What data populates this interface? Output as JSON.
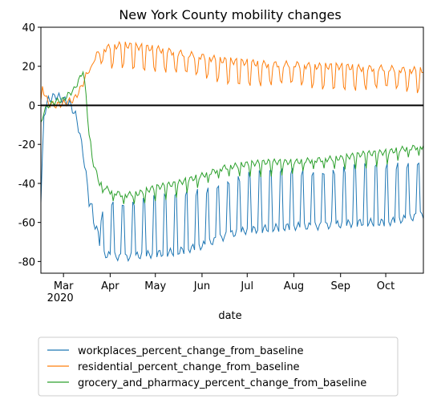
{
  "chart_data": {
    "type": "line",
    "title": "New York County mobility changes",
    "xlabel": "date",
    "ylabel": "",
    "ylim": [
      -86,
      40
    ],
    "x_start": "2020-02-15",
    "x_end": "2020-10-26",
    "x_ticks": [
      {
        "date": "2020-03-01",
        "label": "Mar",
        "sublabel": "2020"
      },
      {
        "date": "2020-04-01",
        "label": "Apr",
        "sublabel": ""
      },
      {
        "date": "2020-05-01",
        "label": "May",
        "sublabel": ""
      },
      {
        "date": "2020-06-01",
        "label": "Jun",
        "sublabel": ""
      },
      {
        "date": "2020-07-01",
        "label": "Jul",
        "sublabel": ""
      },
      {
        "date": "2020-08-01",
        "label": "Aug",
        "sublabel": ""
      },
      {
        "date": "2020-09-01",
        "label": "Sep",
        "sublabel": ""
      },
      {
        "date": "2020-10-01",
        "label": "Oct",
        "sublabel": ""
      }
    ],
    "y_ticks": [
      40,
      20,
      0,
      -20,
      -40,
      -60,
      -80
    ],
    "baseline": 0,
    "grid": false,
    "legend_position": "bottom",
    "series": [
      {
        "name": "workplaces_percent_change_from_baseline",
        "color": "#1f77b4",
        "points": [
          [
            "2020-02-15",
            -50
          ],
          [
            "2020-02-17",
            -5
          ],
          [
            "2020-02-20",
            3
          ],
          [
            "2020-02-25",
            5
          ],
          [
            "2020-03-01",
            3
          ],
          [
            "2020-03-05",
            1
          ],
          [
            "2020-03-09",
            -5
          ],
          [
            "2020-03-12",
            -15
          ],
          [
            "2020-03-14",
            -25
          ],
          [
            "2020-03-16",
            -35
          ],
          [
            "2020-03-18",
            -50
          ],
          [
            "2020-03-20",
            -60
          ],
          [
            "2020-03-23",
            -62
          ],
          [
            "2020-03-26",
            -76
          ],
          [
            "2020-04-01",
            -77
          ],
          [
            "2020-04-10",
            -78
          ],
          [
            "2020-04-20",
            -77
          ],
          [
            "2020-05-01",
            -76
          ],
          [
            "2020-05-15",
            -75
          ],
          [
            "2020-06-01",
            -72
          ],
          [
            "2020-06-10",
            -69
          ],
          [
            "2020-06-20",
            -66
          ],
          [
            "2020-07-01",
            -64
          ],
          [
            "2020-07-15",
            -63
          ],
          [
            "2020-08-01",
            -62
          ],
          [
            "2020-08-15",
            -62
          ],
          [
            "2020-09-01",
            -61
          ],
          [
            "2020-09-15",
            -60
          ],
          [
            "2020-10-01",
            -60
          ],
          [
            "2020-10-15",
            -58
          ],
          [
            "2020-10-26",
            -56
          ]
        ]
      },
      {
        "name": "residential_percent_change_from_baseline",
        "color": "#ff7f0e",
        "points": [
          [
            "2020-02-15",
            1
          ],
          [
            "2020-02-16",
            9
          ],
          [
            "2020-02-20",
            1
          ],
          [
            "2020-02-25",
            0
          ],
          [
            "2020-03-01",
            1
          ],
          [
            "2020-03-08",
            3
          ],
          [
            "2020-03-12",
            8
          ],
          [
            "2020-03-16",
            15
          ],
          [
            "2020-03-20",
            22
          ],
          [
            "2020-03-25",
            28
          ],
          [
            "2020-04-01",
            30
          ],
          [
            "2020-04-10",
            31
          ],
          [
            "2020-04-20",
            30
          ],
          [
            "2020-05-01",
            29
          ],
          [
            "2020-05-15",
            27
          ],
          [
            "2020-06-01",
            25
          ],
          [
            "2020-06-15",
            23
          ],
          [
            "2020-07-01",
            22
          ],
          [
            "2020-07-15",
            21
          ],
          [
            "2020-08-01",
            21
          ],
          [
            "2020-08-15",
            20
          ],
          [
            "2020-09-01",
            20
          ],
          [
            "2020-09-15",
            19
          ],
          [
            "2020-10-01",
            19
          ],
          [
            "2020-10-15",
            18
          ],
          [
            "2020-10-26",
            18
          ]
        ]
      },
      {
        "name": "grocery_and_pharmacy_percent_change_from_baseline",
        "color": "#2ca02c",
        "points": [
          [
            "2020-02-15",
            -10
          ],
          [
            "2020-02-17",
            -3
          ],
          [
            "2020-02-20",
            0
          ],
          [
            "2020-02-25",
            2
          ],
          [
            "2020-03-01",
            3
          ],
          [
            "2020-03-05",
            6
          ],
          [
            "2020-03-08",
            8
          ],
          [
            "2020-03-12",
            14
          ],
          [
            "2020-03-14",
            18
          ],
          [
            "2020-03-16",
            5
          ],
          [
            "2020-03-18",
            -15
          ],
          [
            "2020-03-21",
            -30
          ],
          [
            "2020-03-25",
            -40
          ],
          [
            "2020-04-01",
            -44
          ],
          [
            "2020-04-10",
            -46
          ],
          [
            "2020-04-20",
            -45
          ],
          [
            "2020-05-01",
            -42
          ],
          [
            "2020-05-15",
            -40
          ],
          [
            "2020-06-01",
            -36
          ],
          [
            "2020-06-15",
            -32
          ],
          [
            "2020-07-01",
            -30
          ],
          [
            "2020-07-15",
            -29
          ],
          [
            "2020-08-01",
            -29
          ],
          [
            "2020-08-15",
            -28
          ],
          [
            "2020-09-01",
            -27
          ],
          [
            "2020-09-15",
            -25
          ],
          [
            "2020-10-01",
            -24
          ],
          [
            "2020-10-15",
            -22
          ],
          [
            "2020-10-26",
            -21
          ]
        ]
      }
    ]
  }
}
